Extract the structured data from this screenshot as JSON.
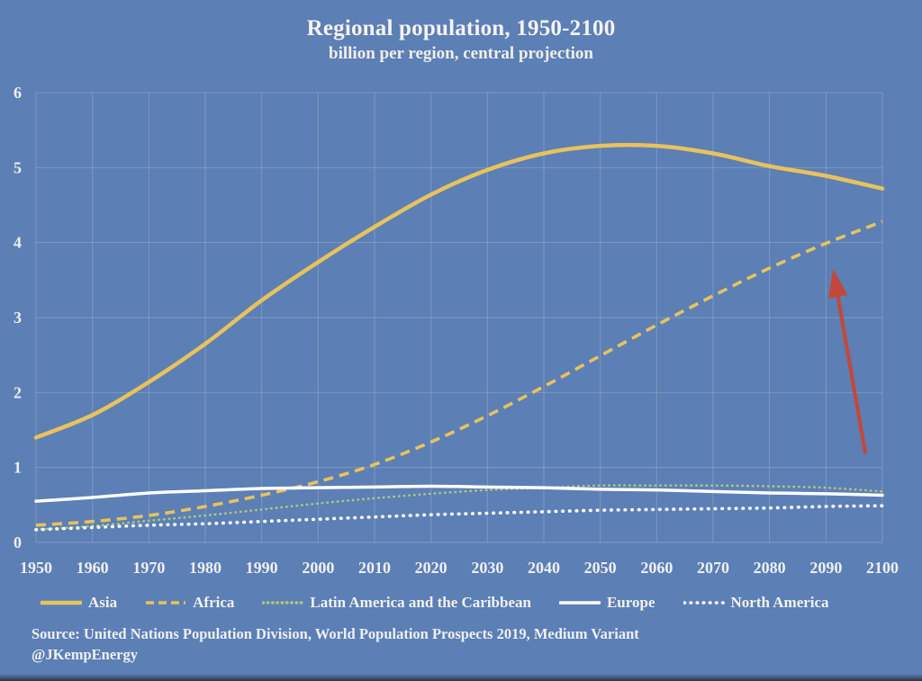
{
  "title": "Regional population, 1950-2100",
  "subtitle": "billion per region, central projection",
  "source_line1": "Source: United Nations Population Division, World Population Prospects 2019, Medium Variant",
  "source_line2": "@JKempEnergy",
  "colors": {
    "background": "#5c7fb5",
    "gold": "#e8c25d",
    "green": "#abc77e",
    "white": "#ffffff",
    "arrow_red": "#c2493a",
    "grid": "rgba(235,240,248,0.22)",
    "text": "#eef0f2"
  },
  "chart_data": {
    "type": "line",
    "title": "Regional population, 1950-2100",
    "subtitle": "billion per region, central projection",
    "xlabel": "",
    "ylabel": "",
    "xlim": [
      1950,
      2100
    ],
    "ylim": [
      0,
      6
    ],
    "grid": true,
    "legend_position": "bottom",
    "xticks": [
      1950,
      1960,
      1970,
      1980,
      1990,
      2000,
      2010,
      2020,
      2030,
      2040,
      2050,
      2060,
      2070,
      2080,
      2090,
      2100
    ],
    "yticks": [
      0,
      1,
      2,
      3,
      4,
      5,
      6
    ],
    "x": [
      1950,
      1960,
      1970,
      1980,
      1990,
      2000,
      2010,
      2020,
      2030,
      2040,
      2050,
      2060,
      2070,
      2080,
      2090,
      2100
    ],
    "series": [
      {
        "name": "Asia",
        "color": "gold",
        "style": "solid",
        "width": 4.5,
        "dash": null,
        "linecap": "round",
        "values": [
          1.4,
          1.7,
          2.14,
          2.65,
          3.23,
          3.74,
          4.21,
          4.64,
          4.97,
          5.19,
          5.29,
          5.29,
          5.19,
          5.02,
          4.89,
          4.72
        ]
      },
      {
        "name": "Africa",
        "color": "gold",
        "style": "dashed",
        "width": 3.6,
        "dash": "11 7",
        "linecap": "butt",
        "values": [
          0.23,
          0.28,
          0.36,
          0.48,
          0.63,
          0.81,
          1.04,
          1.34,
          1.69,
          2.08,
          2.49,
          2.9,
          3.29,
          3.66,
          3.99,
          4.28
        ]
      },
      {
        "name": "Latin America and the Caribbean",
        "color": "green",
        "style": "dotted",
        "width": 2.6,
        "dash": "0.5 5.2",
        "linecap": "round",
        "values": [
          0.17,
          0.22,
          0.29,
          0.36,
          0.44,
          0.52,
          0.59,
          0.65,
          0.7,
          0.73,
          0.76,
          0.76,
          0.76,
          0.75,
          0.73,
          0.68
        ]
      },
      {
        "name": "Europe",
        "color": "white",
        "style": "solid",
        "width": 3.5,
        "dash": null,
        "linecap": "round",
        "values": [
          0.55,
          0.6,
          0.66,
          0.69,
          0.72,
          0.73,
          0.74,
          0.75,
          0.74,
          0.73,
          0.71,
          0.7,
          0.68,
          0.66,
          0.65,
          0.63
        ]
      },
      {
        "name": "North America",
        "color": "white",
        "style": "dotted",
        "width": 3.6,
        "dash": "0.5 7.2",
        "linecap": "round",
        "values": [
          0.17,
          0.2,
          0.23,
          0.25,
          0.28,
          0.31,
          0.34,
          0.37,
          0.39,
          0.41,
          0.43,
          0.44,
          0.45,
          0.46,
          0.48,
          0.49
        ]
      }
    ],
    "annotation_arrow": {
      "x_from": 2097,
      "v_from": 1.18,
      "x_to": 2091.5,
      "v_to": 3.55,
      "color": "arrow_red",
      "points_at": "Africa"
    }
  }
}
